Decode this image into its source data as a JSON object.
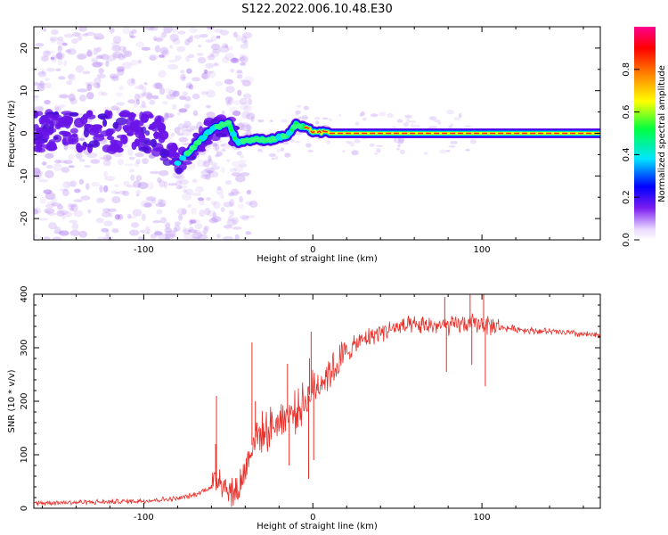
{
  "figure": {
    "title": "S122.2022.006.10.48.E30"
  },
  "chart_data": [
    {
      "type": "heatmap",
      "xlabel": "Height of straight line (km)",
      "ylabel": "Frequency (Hz)",
      "xlim": [
        -165,
        170
      ],
      "ylim": [
        -25,
        25
      ],
      "xticks": [
        -100,
        0,
        100
      ],
      "yticks": [
        -20,
        -10,
        0,
        10,
        20
      ],
      "grid": false,
      "colorbar": {
        "label": "Normalized spectral amplitude",
        "range": [
          0,
          1
        ],
        "ticks": [
          0.0,
          0.2,
          0.4,
          0.6,
          0.8
        ],
        "colormap": [
          "#ffffff",
          "#7a1cf0",
          "#0000ff",
          "#00e5ff",
          "#00ff40",
          "#ffff00",
          "#ff8000",
          "#ff0000",
          "#ff0090"
        ]
      },
      "ridge": [
        {
          "x": -100,
          "y": 0.5
        },
        {
          "x": -90,
          "y": -1
        },
        {
          "x": -80,
          "y": -7
        },
        {
          "x": -70,
          "y": -3
        },
        {
          "x": -60,
          "y": 1
        },
        {
          "x": -50,
          "y": 2.5
        },
        {
          "x": -45,
          "y": -2
        },
        {
          "x": -35,
          "y": -1.5
        },
        {
          "x": -25,
          "y": -1.5
        },
        {
          "x": -15,
          "y": -0.5
        },
        {
          "x": -10,
          "y": 2
        },
        {
          "x": 0,
          "y": 0.5
        },
        {
          "x": 10,
          "y": 0
        },
        {
          "x": 170,
          "y": 0
        }
      ]
    },
    {
      "type": "line",
      "xlabel": "Height of straight line (km)",
      "ylabel": "SNR (10 * v/v)",
      "xlim": [
        -165,
        170
      ],
      "ylim": [
        0,
        400
      ],
      "xticks": [
        -100,
        0,
        100
      ],
      "yticks": [
        0,
        100,
        200,
        300,
        400
      ],
      "grid": false,
      "series": [
        {
          "color": "#e8302a",
          "trend": [
            [
              -165,
              10
            ],
            [
              -120,
              12
            ],
            [
              -100,
              14
            ],
            [
              -80,
              18
            ],
            [
              -70,
              25
            ],
            [
              -60,
              40
            ],
            [
              -55,
              60
            ],
            [
              -50,
              35
            ],
            [
              -45,
              30
            ],
            [
              -40,
              70
            ],
            [
              -35,
              130
            ],
            [
              -30,
              140
            ],
            [
              -25,
              150
            ],
            [
              -20,
              165
            ],
            [
              -15,
              175
            ],
            [
              -10,
              180
            ],
            [
              -5,
              200
            ],
            [
              0,
              220
            ],
            [
              5,
              240
            ],
            [
              10,
              255
            ],
            [
              15,
              270
            ],
            [
              20,
              290
            ],
            [
              25,
              305
            ],
            [
              30,
              315
            ],
            [
              40,
              330
            ],
            [
              50,
              338
            ],
            [
              60,
              340
            ],
            [
              70,
              342
            ],
            [
              80,
              340
            ],
            [
              90,
              345
            ],
            [
              100,
              345
            ],
            [
              110,
              338
            ],
            [
              120,
              335
            ],
            [
              130,
              332
            ],
            [
              140,
              330
            ],
            [
              150,
              328
            ],
            [
              160,
              325
            ],
            [
              170,
              322
            ]
          ],
          "spikes": [
            {
              "x": -57,
              "y": 210
            },
            {
              "x": -57.5,
              "y": 120
            },
            {
              "x": -36,
              "y": 310
            },
            {
              "x": -34,
              "y": 200
            },
            {
              "x": -33,
              "y": 160
            },
            {
              "x": -15,
              "y": 270
            },
            {
              "x": -14,
              "y": 80
            },
            {
              "x": -2,
              "y": 280
            },
            {
              "x": -1,
              "y": 330
            },
            {
              "x": -2.5,
              "y": 55
            },
            {
              "x": 0.5,
              "y": 90
            },
            {
              "x": 78,
              "y": 395
            },
            {
              "x": 79,
              "y": 255
            },
            {
              "x": 93,
              "y": 400
            },
            {
              "x": 94,
              "y": 268
            },
            {
              "x": 101,
              "y": 405
            },
            {
              "x": 102,
              "y": 228
            }
          ]
        }
      ]
    }
  ]
}
